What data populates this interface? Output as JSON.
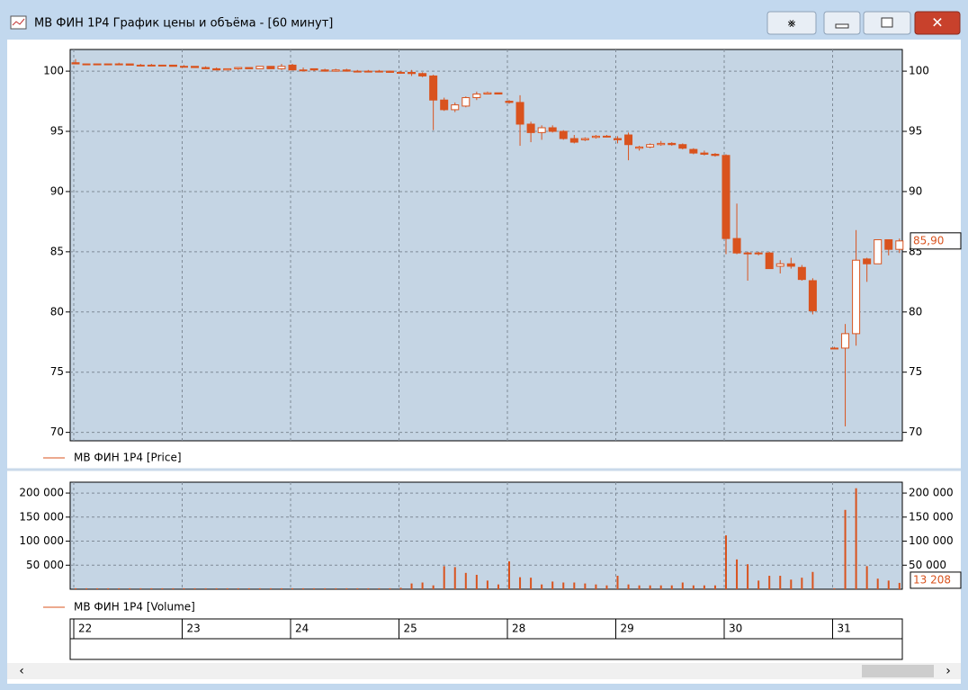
{
  "window": {
    "title": "МВ ФИН 1Р4 График цены и объёма - [60 минут]"
  },
  "chart_data": [
    {
      "type": "candlestick",
      "legend": "МВ ФИН 1Р4 [Price]",
      "color": "#d9531e",
      "grid": true,
      "categories": [
        "22",
        null,
        null,
        null,
        null,
        null,
        null,
        null,
        null,
        null,
        "23",
        null,
        null,
        null,
        null,
        null,
        null,
        null,
        null,
        null,
        "24",
        null,
        null,
        null,
        null,
        null,
        null,
        null,
        null,
        null,
        "25",
        null,
        null,
        null,
        null,
        null,
        null,
        null,
        null,
        null,
        "28",
        null,
        null,
        null,
        null,
        null,
        null,
        null,
        null,
        null,
        "29",
        null,
        null,
        null,
        null,
        null,
        null,
        null,
        null,
        null,
        "30",
        null,
        null,
        null,
        null,
        null,
        null,
        null,
        null,
        null,
        "31",
        null,
        null,
        null,
        null,
        null,
        null
      ],
      "open": [
        100.7,
        100.6,
        100.6,
        100.6,
        100.6,
        100.6,
        100.5,
        100.5,
        100.5,
        100.5,
        100.4,
        100.4,
        100.3,
        100.2,
        100.1,
        100.2,
        100.3,
        100.2,
        100.4,
        100.2,
        100.5,
        100.1,
        100.2,
        100.1,
        100.0,
        100.1,
        100.0,
        100.0,
        100.0,
        100.0,
        99.9,
        99.9,
        99.8,
        99.6,
        97.6,
        96.8,
        97.1,
        97.8,
        98.1,
        98.2,
        97.5,
        97.4,
        95.6,
        94.9,
        95.3,
        95.0,
        94.4,
        94.3,
        94.5,
        94.6,
        94.4,
        94.7,
        93.6,
        93.7,
        93.9,
        94.0,
        93.9,
        93.5,
        93.2,
        93.1,
        93.0,
        86.1,
        84.9,
        84.9,
        84.9,
        83.8,
        84.0,
        83.7,
        82.6,
        null,
        77.0,
        77.0,
        78.2,
        84.4,
        84.0,
        86.0,
        85.2
      ],
      "high": [
        101.0,
        100.6,
        100.6,
        100.6,
        100.7,
        100.6,
        100.6,
        100.6,
        100.5,
        100.5,
        100.5,
        100.4,
        100.4,
        100.3,
        100.2,
        100.3,
        100.3,
        100.4,
        100.4,
        100.6,
        100.6,
        100.3,
        100.2,
        100.2,
        100.2,
        100.2,
        100.1,
        100.1,
        100.1,
        100.0,
        100.0,
        100.1,
        99.9,
        99.7,
        97.8,
        97.4,
        97.9,
        98.3,
        98.3,
        98.2,
        97.6,
        98.0,
        95.8,
        95.5,
        95.5,
        95.1,
        94.7,
        94.5,
        94.7,
        94.7,
        94.6,
        94.9,
        93.8,
        94.0,
        94.2,
        94.1,
        94.0,
        93.6,
        93.4,
        93.2,
        93.1,
        89.0,
        85.0,
        85.0,
        85.0,
        84.3,
        84.5,
        83.9,
        82.8,
        null,
        77.1,
        79.0,
        86.8,
        84.5,
        86.0,
        86.0,
        86.1
      ],
      "low": [
        100.6,
        100.6,
        100.6,
        100.6,
        100.5,
        100.5,
        100.5,
        100.5,
        100.5,
        100.4,
        100.4,
        100.3,
        100.2,
        100.1,
        100.1,
        100.1,
        100.2,
        100.2,
        100.2,
        100.1,
        100.1,
        100.0,
        100.0,
        100.0,
        100.0,
        100.0,
        100.0,
        99.9,
        100.0,
        99.9,
        99.8,
        99.6,
        99.5,
        95.1,
        96.7,
        96.6,
        97.0,
        97.6,
        98.1,
        98.1,
        97.3,
        93.8,
        94.1,
        94.3,
        94.9,
        94.3,
        94.0,
        94.2,
        94.4,
        94.5,
        94.0,
        92.6,
        93.4,
        93.6,
        93.8,
        93.8,
        93.5,
        93.1,
        93.0,
        92.9,
        84.8,
        84.8,
        82.6,
        84.7,
        83.6,
        83.2,
        83.6,
        82.6,
        79.8,
        null,
        77.0,
        70.5,
        77.2,
        82.5,
        84.0,
        84.7,
        84.9
      ],
      "close": [
        100.6,
        100.6,
        100.6,
        100.6,
        100.6,
        100.5,
        100.5,
        100.5,
        100.5,
        100.4,
        100.4,
        100.3,
        100.2,
        100.1,
        100.2,
        100.3,
        100.2,
        100.4,
        100.2,
        100.4,
        100.1,
        100.1,
        100.1,
        100.0,
        100.1,
        100.0,
        100.0,
        100.0,
        100.0,
        99.9,
        99.9,
        99.8,
        99.6,
        97.6,
        96.8,
        97.2,
        97.8,
        98.1,
        98.2,
        98.1,
        97.4,
        95.6,
        94.9,
        95.3,
        95.0,
        94.4,
        94.1,
        94.4,
        94.6,
        94.6,
        94.3,
        93.9,
        93.7,
        93.9,
        94.0,
        93.9,
        93.6,
        93.2,
        93.1,
        93.0,
        86.1,
        84.9,
        84.9,
        84.9,
        83.6,
        84.0,
        83.8,
        82.7,
        80.1,
        null,
        77.0,
        78.2,
        84.3,
        84.0,
        86.0,
        85.2,
        85.9
      ],
      "last_value_label": "85,90",
      "ylim": [
        69.3,
        101.8
      ],
      "yticks": [
        70,
        75,
        80,
        85,
        90,
        95,
        100
      ]
    },
    {
      "type": "bar",
      "legend": "МВ ФИН 1Р4 [Volume]",
      "color": "#d9531e",
      "grid": true,
      "values": [
        2000,
        2000,
        2000,
        2000,
        2000,
        2000,
        2000,
        2000,
        2000,
        2000,
        2000,
        2000,
        2000,
        2000,
        2000,
        2000,
        2000,
        2000,
        2000,
        2000,
        2000,
        2000,
        2000,
        2000,
        2000,
        2000,
        2000,
        2000,
        2000,
        2000,
        3000,
        12000,
        14000,
        8000,
        48000,
        46000,
        34000,
        30000,
        18000,
        10000,
        58000,
        25000,
        24000,
        10000,
        16000,
        14000,
        14000,
        12000,
        10000,
        8000,
        28000,
        10000,
        8000,
        8000,
        8000,
        8000,
        14000,
        8000,
        8000,
        8000,
        112000,
        62000,
        52000,
        18000,
        28000,
        28000,
        20000,
        24000,
        36000,
        null,
        2000,
        165000,
        210000,
        48000,
        22000,
        18000,
        13208
      ],
      "last_value_label": "13 208",
      "ylim": [
        0,
        222600
      ],
      "yticks": [
        {
          "value": 50000,
          "label": "50 000"
        },
        {
          "value": 100000,
          "label": "100 000"
        },
        {
          "value": 150000,
          "label": "150 000"
        },
        {
          "value": 200000,
          "label": "200 000"
        }
      ]
    }
  ]
}
